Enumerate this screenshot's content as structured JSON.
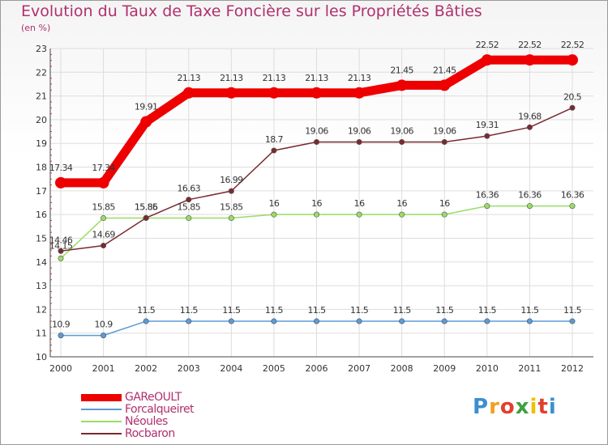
{
  "title": "Evolution du Taux de Taxe Foncière sur les Propriétés Bâties",
  "unit": "(en %)",
  "logo": {
    "letters": [
      "P",
      "r",
      "o",
      "x",
      "i",
      "t",
      "i"
    ],
    "colors": [
      "#3a8fd0",
      "#f0a020",
      "#e04030",
      "#40a040",
      "#f0c000",
      "#e04030",
      "#3a8fd0"
    ]
  },
  "chart_data": {
    "type": "line",
    "categories": [
      "2000",
      "2001",
      "2002",
      "2003",
      "2004",
      "2005",
      "2006",
      "2007",
      "2008",
      "2009",
      "2010",
      "2011",
      "2012"
    ],
    "ylim": [
      10,
      23
    ],
    "yticks": [
      10,
      11,
      12,
      13,
      14,
      15,
      16,
      17,
      18,
      19,
      20,
      21,
      22,
      23
    ],
    "grid": true,
    "series": [
      {
        "name": "GAReOULT",
        "color": "#ee0000",
        "values": [
          17.34,
          17.34,
          19.91,
          21.13,
          21.13,
          21.13,
          21.13,
          21.13,
          21.45,
          21.45,
          22.52,
          22.52,
          22.52
        ],
        "labels": [
          "17.34",
          "17.34",
          "19.91",
          "21.13",
          "21.13",
          "21.13",
          "21.13",
          "21.13",
          "21.45",
          "21.45",
          "22.52",
          "22.52",
          "22.52"
        ]
      },
      {
        "name": "Forcalqueiret",
        "color": "#5b9bd5",
        "values": [
          10.9,
          10.9,
          11.5,
          11.5,
          11.5,
          11.5,
          11.5,
          11.5,
          11.5,
          11.5,
          11.5,
          11.5,
          11.5
        ],
        "labels": [
          "10.9",
          "10.9",
          "11.5",
          "11.5",
          "11.5",
          "11.5",
          "11.5",
          "11.5",
          "11.5",
          "11.5",
          "11.5",
          "11.5",
          "11.5"
        ]
      },
      {
        "name": "Néoules",
        "color": "#99dd66",
        "values": [
          14.15,
          15.85,
          15.85,
          15.85,
          15.85,
          16,
          16,
          16,
          16,
          16,
          16.36,
          16.36,
          16.36
        ],
        "labels": [
          "14.15",
          "15.85",
          "15.85",
          "15.85",
          "15.85",
          "16",
          "16",
          "16",
          "16",
          "16",
          "16.36",
          "16.36",
          "16.36"
        ]
      },
      {
        "name": "Rocbaron",
        "color": "#7a2a30",
        "values": [
          14.46,
          14.69,
          15.86,
          16.63,
          16.99,
          18.7,
          19.06,
          19.06,
          19.06,
          19.06,
          19.31,
          19.68,
          20.5
        ],
        "labels": [
          "14.46",
          "14.69",
          "15.86",
          "16.63",
          "16.99",
          "18.7",
          "19.06",
          "19.06",
          "19.06",
          "19.06",
          "19.31",
          "19.68",
          "20.5"
        ]
      }
    ],
    "legend": [
      "GAReOULT",
      "Forcalqueiret",
      "Néoules",
      "Rocbaron"
    ],
    "legend_position": "bottom-left"
  }
}
